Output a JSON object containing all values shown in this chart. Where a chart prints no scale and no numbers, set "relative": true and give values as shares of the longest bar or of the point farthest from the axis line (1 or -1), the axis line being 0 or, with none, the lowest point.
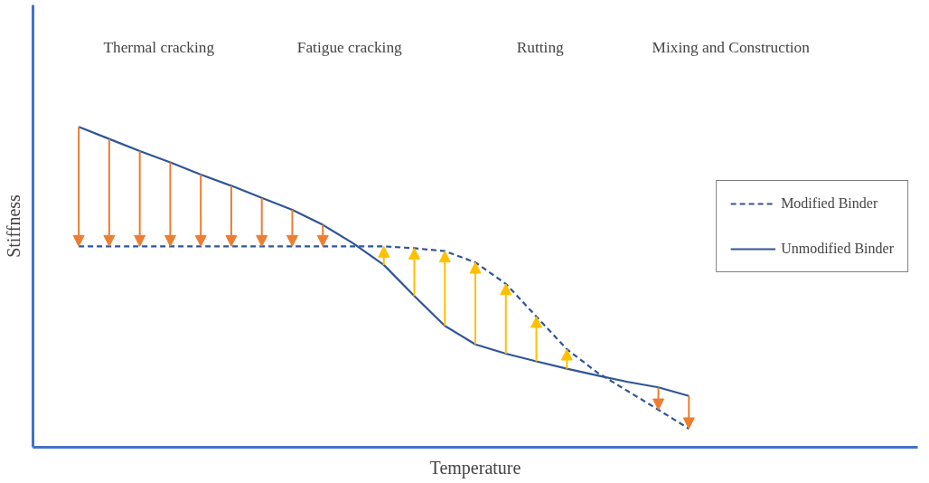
{
  "chart_data": {
    "type": "line",
    "relative": true,
    "xlabel": "Temperature",
    "ylabel": "Stiffness",
    "annotations": [
      "Thermal cracking",
      "Fatigue cracking",
      "Rutting",
      "Mixing and Construction"
    ],
    "categories": [
      null,
      null,
      null,
      null,
      null,
      null,
      null,
      null,
      null,
      null,
      null,
      null,
      null,
      null,
      null,
      null,
      null,
      null,
      null,
      null,
      null
    ],
    "series": [
      {
        "name": "Modified Binder",
        "color": "#2f5597",
        "line_style": "dashed",
        "values": [
          0.627,
          0.627,
          0.627,
          0.627,
          0.627,
          0.627,
          0.627,
          0.627,
          0.627,
          0.627,
          0.627,
          0.621,
          0.612,
          0.577,
          0.51,
          0.408,
          0.306,
          0.233,
          0.175,
          0.117,
          0.058
        ]
      },
      {
        "name": "Unmodified Binder",
        "color": "#2f5597",
        "line_style": "solid",
        "values": [
          1,
          0.962,
          0.924,
          0.889,
          0.851,
          0.816,
          0.778,
          0.741,
          0.694,
          0.636,
          0.569,
          0.472,
          0.379,
          0.321,
          0.292,
          0.268,
          0.245,
          0.224,
          0.204,
          0.187,
          0.16
        ]
      }
    ],
    "legend": "right",
    "grid": false
  }
}
